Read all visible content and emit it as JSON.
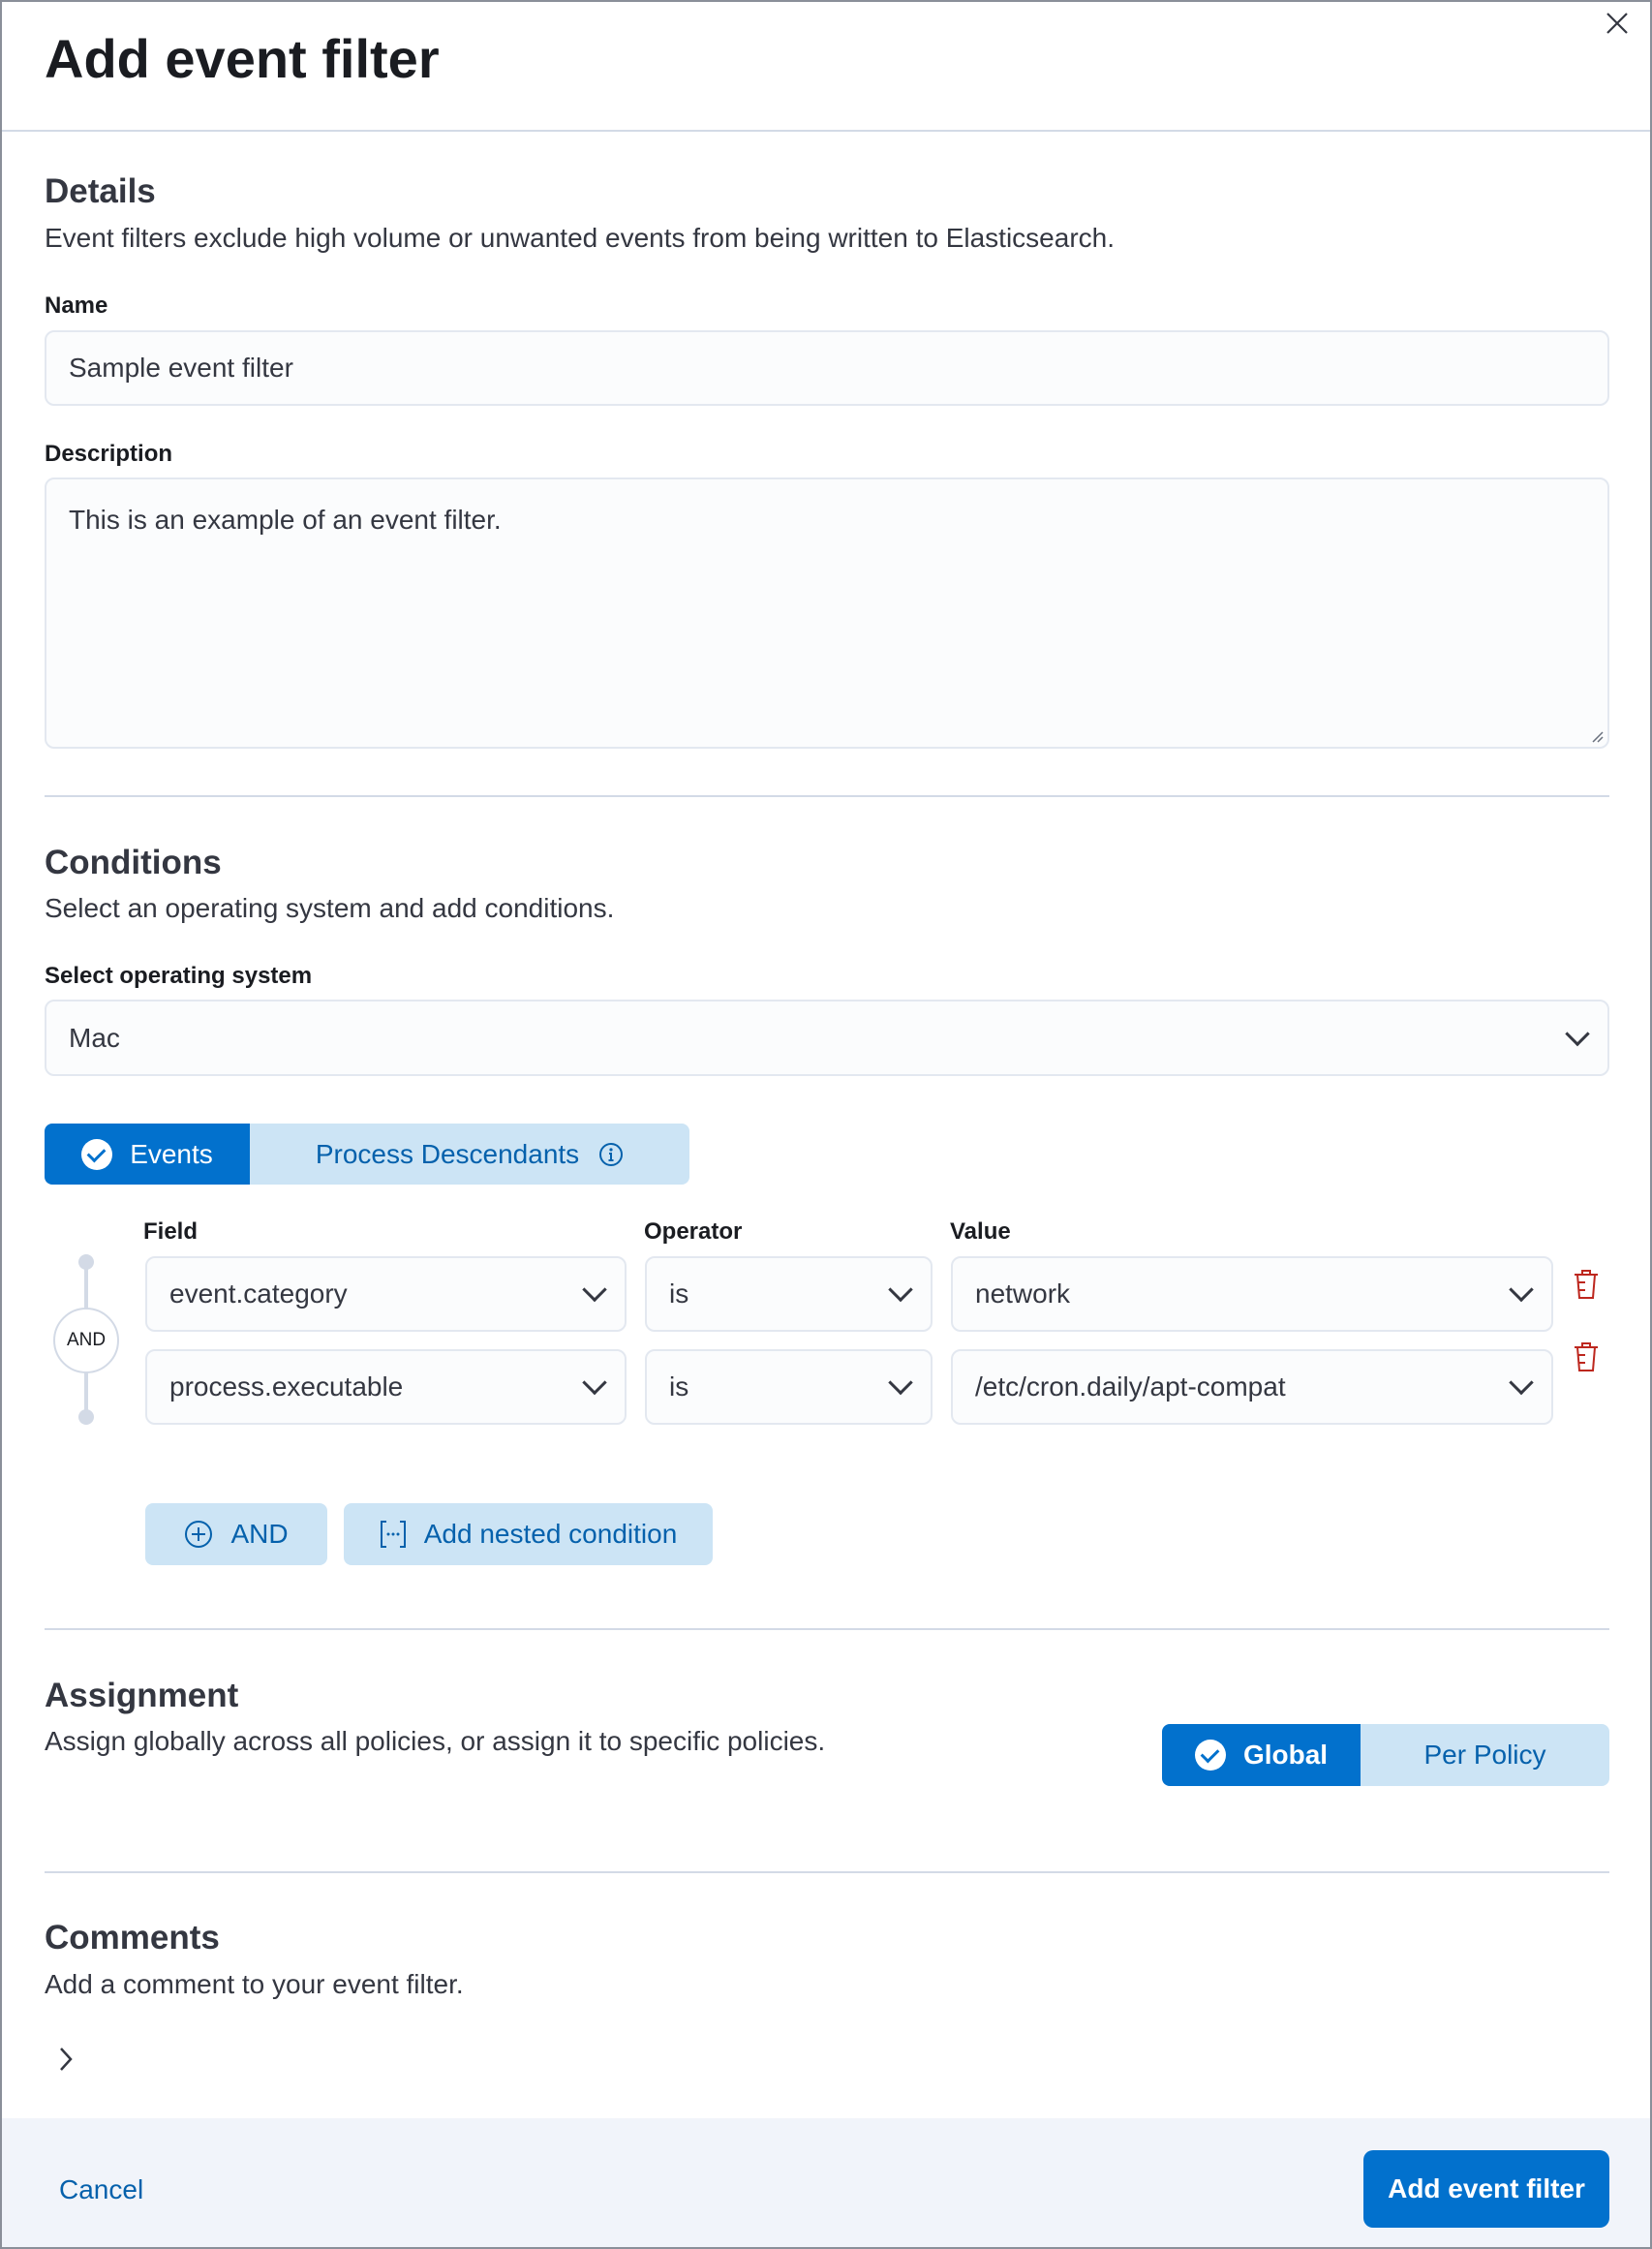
{
  "header": {
    "title": "Add event filter"
  },
  "details": {
    "heading": "Details",
    "description": "Event filters exclude high volume or unwanted events from being written to Elasticsearch.",
    "name_label": "Name",
    "name_value": "Sample event filter",
    "description_label": "Description",
    "description_value": "This is an example of an event filter."
  },
  "conditions": {
    "heading": "Conditions",
    "description": "Select an operating system and add conditions.",
    "os_label": "Select operating system",
    "os_value": "Mac",
    "tabs": [
      {
        "label": "Events",
        "selected": true
      },
      {
        "label": "Process Descendants",
        "selected": false
      }
    ],
    "columns": {
      "field": "Field",
      "operator": "Operator",
      "value": "Value"
    },
    "connector": "AND",
    "rows": [
      {
        "field": "event.category",
        "operator": "is",
        "value": "network"
      },
      {
        "field": "process.executable",
        "operator": "is",
        "value": "/etc/cron.daily/apt-compat"
      }
    ],
    "and_button": "AND",
    "nested_button": "Add nested condition"
  },
  "assignment": {
    "heading": "Assignment",
    "description": "Assign globally across all policies, or assign it to specific policies.",
    "options": [
      {
        "label": "Global",
        "selected": true
      },
      {
        "label": "Per Policy",
        "selected": false
      }
    ]
  },
  "comments": {
    "heading": "Comments",
    "description": "Add a comment to your event filter."
  },
  "footer": {
    "cancel": "Cancel",
    "submit": "Add event filter"
  },
  "colors": {
    "primary": "#0271cd",
    "primary_light": "#cce4f5",
    "danger": "#bd271e",
    "footer_bg": "#f1f4fa"
  }
}
